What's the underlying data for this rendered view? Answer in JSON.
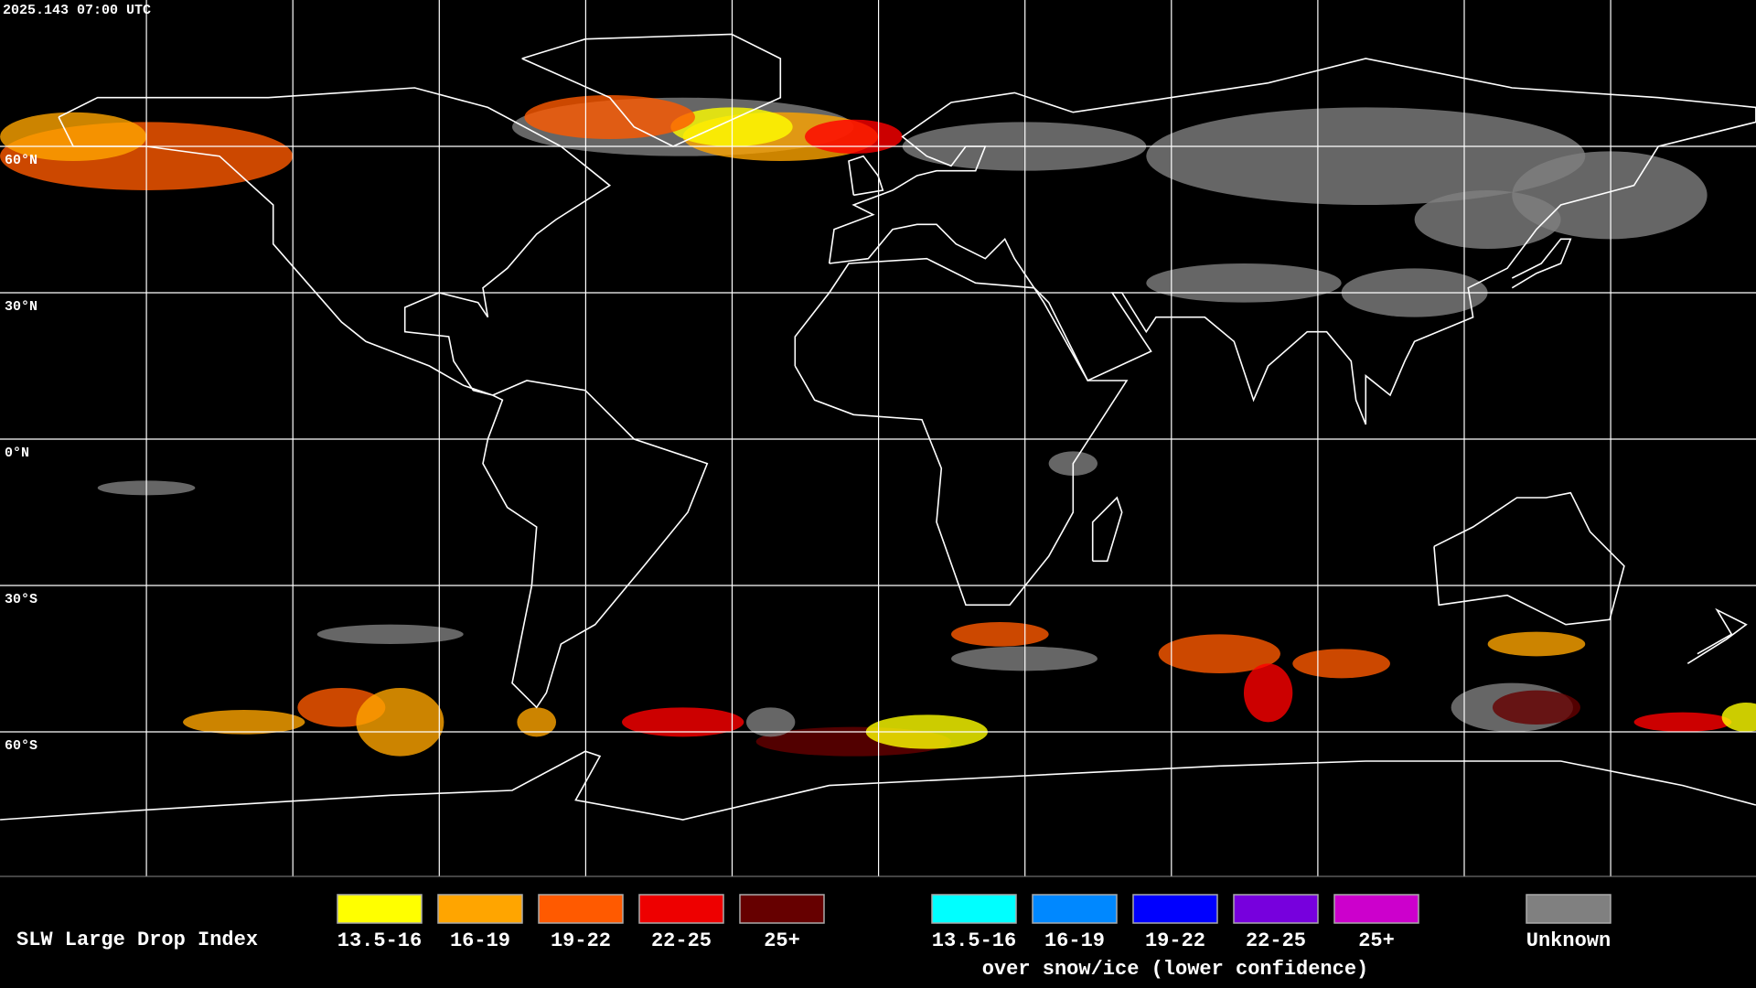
{
  "header": {
    "timestamp": "2025.143 07:00 UTC"
  },
  "map": {
    "latitude_labels": [
      "60°N",
      "30°N",
      "0°N",
      "30°S",
      "60°S"
    ]
  },
  "legend": {
    "title": "SLW Large Drop Index",
    "groups": [
      {
        "items": [
          {
            "label": "13.5-16",
            "color": "#ffff00"
          },
          {
            "label": "16-19",
            "color": "#ffa500"
          },
          {
            "label": "19-22",
            "color": "#ff5a00"
          },
          {
            "label": "22-25",
            "color": "#ee0000"
          },
          {
            "label": "25+",
            "color": "#660000"
          }
        ]
      },
      {
        "items": [
          {
            "label": "13.5-16",
            "color": "#00ffff"
          },
          {
            "label": "16-19",
            "color": "#0088ff"
          },
          {
            "label": "19-22",
            "color": "#0000ff"
          },
          {
            "label": "22-25",
            "color": "#7700dd"
          },
          {
            "label": "25+",
            "color": "#cc00cc"
          }
        ],
        "note": "over snow/ice (lower confidence)"
      }
    ],
    "unknown": {
      "label": "Unknown",
      "color": "#808080"
    }
  }
}
